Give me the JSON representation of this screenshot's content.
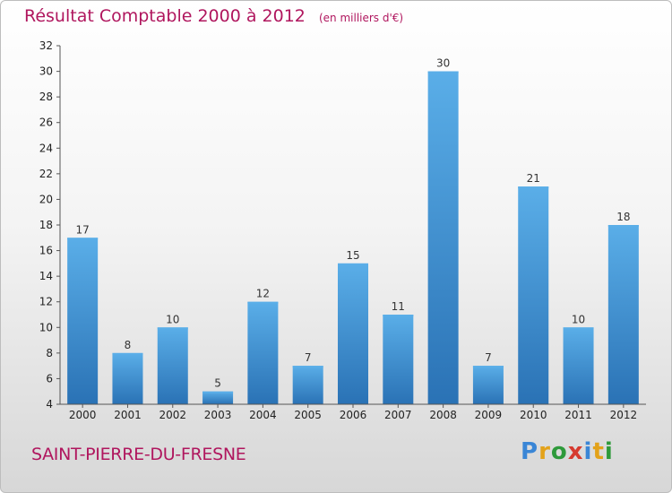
{
  "chart_data": {
    "type": "bar",
    "title": "Résultat Comptable 2000 à 2012",
    "subtitle": "(en milliers d'€)",
    "categories": [
      "2000",
      "2001",
      "2002",
      "2003",
      "2004",
      "2005",
      "2006",
      "2007",
      "2008",
      "2009",
      "2010",
      "2011",
      "2012"
    ],
    "values": [
      17,
      8,
      10,
      5,
      12,
      7,
      15,
      11,
      30,
      7,
      21,
      10,
      18
    ],
    "ylim": [
      4,
      32
    ],
    "yticks": [
      4,
      6,
      8,
      10,
      12,
      14,
      16,
      18,
      20,
      22,
      24,
      26,
      28,
      30,
      32
    ],
    "xlabel": "",
    "ylabel": "",
    "grid": false,
    "bar_color": "#3b8fd4",
    "bar_color_light": "#5aaee8",
    "bar_color_dark": "#2a72b5"
  },
  "commune": "SAINT-PIERRE-DU-FRESNE",
  "logo": {
    "text": "Proxiti",
    "letters": [
      {
        "ch": "P",
        "color": "#3a86d6"
      },
      {
        "ch": "r",
        "color": "#e3a21a"
      },
      {
        "ch": "o",
        "color": "#2e9a3b"
      },
      {
        "ch": "x",
        "color": "#d63a2f"
      },
      {
        "ch": "i",
        "color": "#3a86d6"
      },
      {
        "ch": "t",
        "color": "#e3a21a"
      },
      {
        "ch": "i",
        "color": "#2e9a3b"
      }
    ]
  },
  "colors": {
    "title": "#b0165e",
    "axis": "#222222"
  }
}
